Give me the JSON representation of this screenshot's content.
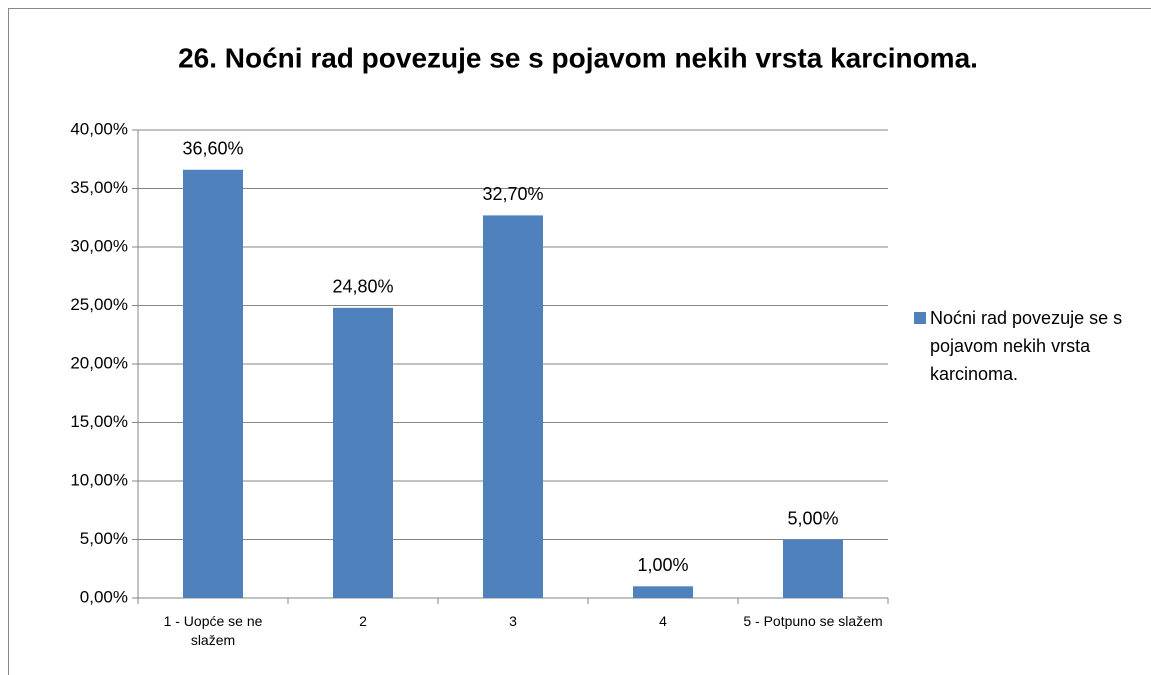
{
  "chart_data": {
    "type": "bar",
    "title": "26. Noćni rad povezuje se s pojavom nekih vrsta karcinoma.",
    "categories": [
      "1 - Uopće se ne slažem",
      "2",
      "3",
      "4",
      "5 - Potpuno se slažem"
    ],
    "series": [
      {
        "name": "Noćni rad povezuje se s pojavom nekih vrsta karcinoma.",
        "color": "#4f81bd",
        "values": [
          36.6,
          24.8,
          32.7,
          1.0,
          5.0
        ],
        "value_labels": [
          "36,60%",
          "24,80%",
          "32,70%",
          "1,00%",
          "5,00%"
        ]
      }
    ],
    "ylim": [
      0,
      40
    ],
    "yticks": [
      {
        "value": 0,
        "label": "0,00%"
      },
      {
        "value": 5,
        "label": "5,00%"
      },
      {
        "value": 10,
        "label": "10,00%"
      },
      {
        "value": 15,
        "label": "15,00%"
      },
      {
        "value": 20,
        "label": "20,00%"
      },
      {
        "value": 25,
        "label": "25,00%"
      },
      {
        "value": 30,
        "label": "30,00%"
      },
      {
        "value": 35,
        "label": "35,00%"
      },
      {
        "value": 40,
        "label": "40,00%"
      }
    ],
    "grid": true,
    "legend": "right"
  }
}
